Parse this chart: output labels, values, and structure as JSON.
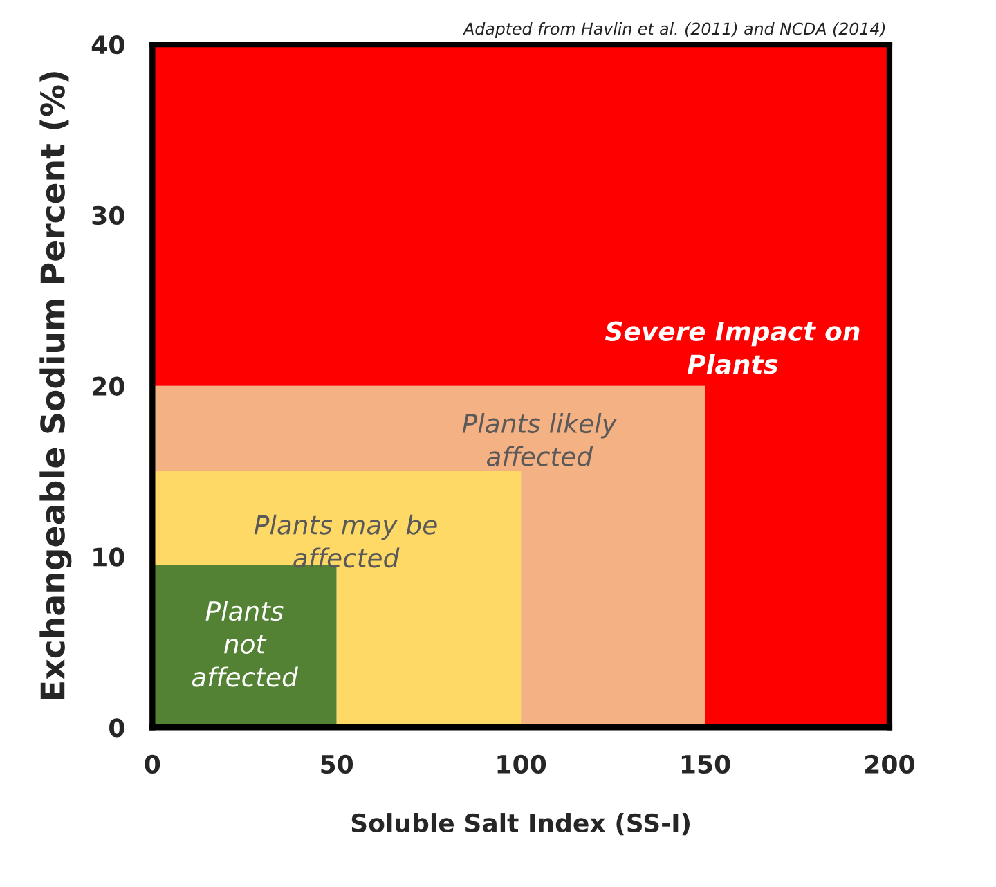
{
  "chart_data": {
    "type": "area",
    "stacked": true,
    "xlabel": "Soluble Salt Index (SS-I)",
    "ylabel": "Exchangeable Sodium Percent (%)",
    "annotations": [
      "Adapted from Havlin et al. (2011) and NCDA (2014)"
    ],
    "x": [
      0,
      50,
      50,
      100,
      100,
      150,
      150,
      200
    ],
    "series": [
      {
        "name": "Plants\nnot\naffected",
        "color": "#548235",
        "values": [
          9.5,
          9.5,
          0,
          0,
          0,
          0,
          0,
          0
        ]
      },
      {
        "name": "Plants may be\naffected",
        "color": "#ffd966",
        "values": [
          5.5,
          5.5,
          15,
          15,
          0,
          0,
          0,
          0
        ]
      },
      {
        "name": "Plants likely\naffected",
        "color": "#f4b183",
        "values": [
          5,
          5,
          5,
          5,
          20,
          20,
          0,
          0
        ]
      },
      {
        "name": "Severe Impact on\nPlants",
        "color": "#ff0000",
        "values": [
          20,
          20,
          20,
          20,
          20,
          20,
          40,
          40
        ]
      }
    ],
    "xlim": [
      0,
      200
    ],
    "ylim": [
      0,
      40
    ],
    "xticks": [
      0,
      50,
      100,
      150,
      200
    ],
    "yticks": [
      0,
      10,
      20,
      30,
      40
    ],
    "legend": false
  }
}
